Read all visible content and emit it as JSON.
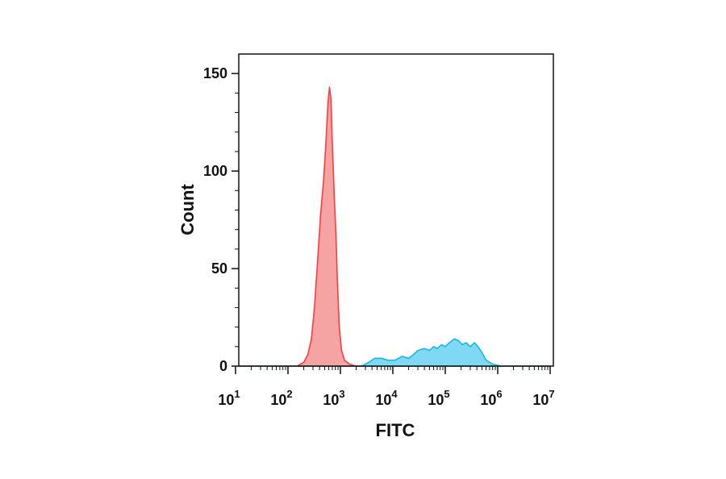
{
  "chart_data": {
    "type": "area",
    "xlabel": "FITC",
    "ylabel": "Count",
    "xscale": "log",
    "xlim": [
      10,
      10000000
    ],
    "ylim": [
      0,
      160
    ],
    "grid": false,
    "legend": "none",
    "y_ticks": [
      {
        "value": 0,
        "label": "0"
      },
      {
        "value": 50,
        "label": "50"
      },
      {
        "value": 100,
        "label": "100"
      },
      {
        "value": 150,
        "label": "150"
      }
    ],
    "x_ticks": [
      {
        "value": 10,
        "base": "10",
        "exp": "1"
      },
      {
        "value": 100,
        "base": "10",
        "exp": "2"
      },
      {
        "value": 1000,
        "base": "10",
        "exp": "3"
      },
      {
        "value": 10000,
        "base": "10",
        "exp": "4"
      },
      {
        "value": 100000,
        "base": "10",
        "exp": "5"
      },
      {
        "value": 1000000,
        "base": "10",
        "exp": "6"
      },
      {
        "value": 10000000,
        "base": "10",
        "exp": "7"
      }
    ],
    "series": [
      {
        "color": "#f5a3a3",
        "stroke": "#ff3c3c",
        "x": [
          10,
          150,
          200,
          240,
          280,
          320,
          370,
          420,
          480,
          530,
          580,
          620,
          660,
          700,
          760,
          820,
          880,
          950,
          1050,
          1200,
          1500,
          2000,
          10000000
        ],
        "y": [
          0,
          0,
          2,
          6,
          14,
          30,
          55,
          78,
          96,
          115,
          135,
          143,
          137,
          115,
          88,
          68,
          42,
          20,
          8,
          3,
          1,
          0,
          0
        ]
      },
      {
        "color": "#7fd9f5",
        "stroke": "#1bb8e6",
        "x": [
          10,
          2500,
          3500,
          4500,
          6000,
          8000,
          11000,
          15000,
          20000,
          25000,
          30000,
          40000,
          50000,
          60000,
          70000,
          85000,
          100000,
          120000,
          150000,
          180000,
          210000,
          250000,
          300000,
          360000,
          420000,
          500000,
          600000,
          800000,
          1200000,
          2000000,
          10000000
        ],
        "y": [
          0,
          0,
          2,
          4,
          4,
          3,
          3,
          5,
          4,
          6,
          8,
          9,
          8,
          10,
          9,
          11,
          10,
          12,
          14,
          13,
          11,
          12,
          10,
          12,
          10,
          7,
          3,
          1,
          0,
          0,
          0
        ]
      }
    ]
  }
}
